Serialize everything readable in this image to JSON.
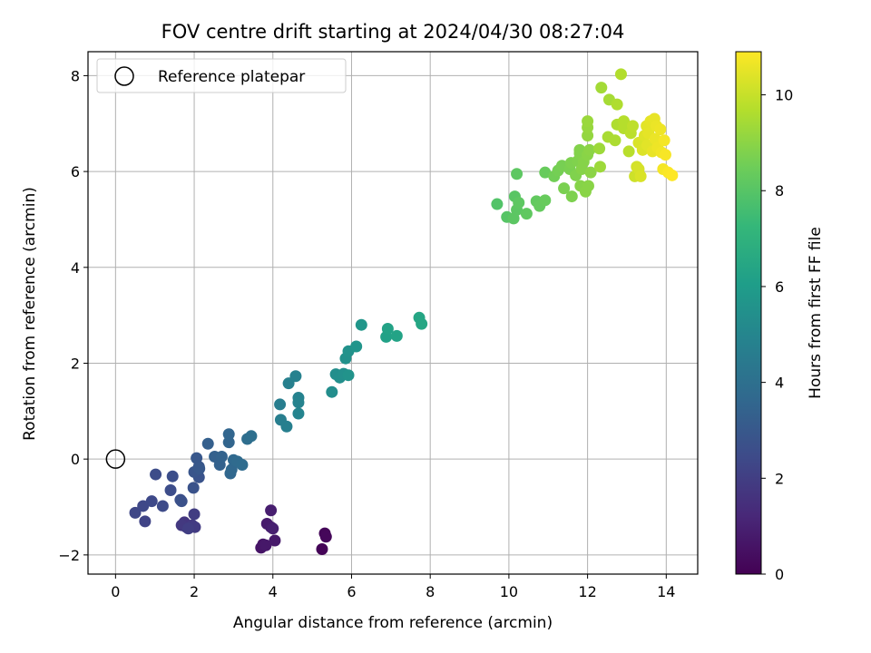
{
  "chart_data": {
    "type": "scatter",
    "title": "FOV centre drift starting at 2024/04/30 08:27:04",
    "xlabel": "Angular distance from reference (arcmin)",
    "ylabel": "Rotation from reference (arcmin)",
    "colorbar_label": "Hours from first FF file",
    "xlim": [
      -0.7,
      14.8
    ],
    "ylim": [
      -2.4,
      8.5
    ],
    "clim": [
      0,
      10.9
    ],
    "xticks": [
      0,
      2,
      4,
      6,
      8,
      10,
      12,
      14
    ],
    "yticks": [
      -2,
      0,
      2,
      4,
      6,
      8
    ],
    "cticks": [
      0,
      2,
      4,
      6,
      8,
      10
    ],
    "xtick_labels": [
      "0",
      "2",
      "4",
      "6",
      "8",
      "10",
      "12",
      "14"
    ],
    "ytick_labels": [
      "−2",
      "0",
      "2",
      "4",
      "6",
      "8"
    ],
    "ctick_labels": [
      "0",
      "2",
      "4",
      "6",
      "8",
      "10"
    ],
    "grid": true,
    "colormap": "viridis",
    "legend": {
      "location": "upper-left",
      "label": "Reference platepar",
      "x": 0,
      "y": 0
    },
    "points": [
      [
        5.25,
        -1.88,
        0.1
      ],
      [
        5.32,
        -1.55,
        0.15
      ],
      [
        5.35,
        -1.62,
        0.2
      ],
      [
        3.7,
        -1.85,
        0.6
      ],
      [
        3.75,
        -1.78,
        0.65
      ],
      [
        3.82,
        -1.8,
        0.7
      ],
      [
        4.05,
        -1.7,
        0.75
      ],
      [
        3.85,
        -1.35,
        0.8
      ],
      [
        3.95,
        -1.42,
        0.85
      ],
      [
        3.95,
        -1.07,
        0.9
      ],
      [
        4.0,
        -1.45,
        0.95
      ],
      [
        1.75,
        -1.32,
        1.7
      ],
      [
        1.8,
        -1.42,
        1.75
      ],
      [
        1.68,
        -1.38,
        1.8
      ],
      [
        1.95,
        -1.38,
        1.85
      ],
      [
        2.02,
        -1.42,
        1.9
      ],
      [
        2.0,
        -1.15,
        1.95
      ],
      [
        1.85,
        -1.45,
        2.0
      ],
      [
        0.75,
        -1.3,
        2.2
      ],
      [
        0.5,
        -1.12,
        2.3
      ],
      [
        0.7,
        -0.98,
        2.35
      ],
      [
        0.92,
        -0.88,
        2.4
      ],
      [
        1.2,
        -0.98,
        2.45
      ],
      [
        1.02,
        -0.32,
        2.5
      ],
      [
        1.4,
        -0.65,
        2.55
      ],
      [
        1.45,
        -0.36,
        2.6
      ],
      [
        1.65,
        -0.85,
        2.65
      ],
      [
        1.68,
        -0.88,
        2.7
      ],
      [
        1.98,
        -0.6,
        2.75
      ],
      [
        2.12,
        -0.38,
        2.8
      ],
      [
        2.0,
        -0.27,
        2.85
      ],
      [
        2.12,
        -0.16,
        2.9
      ],
      [
        2.06,
        0.02,
        2.95
      ],
      [
        2.13,
        -0.2,
        3.0
      ],
      [
        2.35,
        0.32,
        3.3
      ],
      [
        2.52,
        0.05,
        3.35
      ],
      [
        2.65,
        -0.12,
        3.4
      ],
      [
        2.7,
        0.05,
        3.45
      ],
      [
        2.88,
        0.35,
        3.5
      ],
      [
        2.88,
        0.52,
        3.55
      ],
      [
        2.92,
        -0.3,
        3.6
      ],
      [
        2.95,
        -0.22,
        3.65
      ],
      [
        3.0,
        -0.02,
        3.7
      ],
      [
        3.1,
        -0.05,
        3.75
      ],
      [
        3.22,
        -0.12,
        3.8
      ],
      [
        3.35,
        0.42,
        3.9
      ],
      [
        3.45,
        0.48,
        3.95
      ],
      [
        4.18,
        1.14,
        4.6
      ],
      [
        4.2,
        0.82,
        4.65
      ],
      [
        4.35,
        0.68,
        4.7
      ],
      [
        4.4,
        1.58,
        4.75
      ],
      [
        4.58,
        1.73,
        4.8
      ],
      [
        4.65,
        1.28,
        4.85
      ],
      [
        4.65,
        1.18,
        4.9
      ],
      [
        4.65,
        0.95,
        4.95
      ],
      [
        5.5,
        1.4,
        5.3
      ],
      [
        5.6,
        1.77,
        5.35
      ],
      [
        5.7,
        1.7,
        5.4
      ],
      [
        5.8,
        1.78,
        5.45
      ],
      [
        5.85,
        2.1,
        5.5
      ],
      [
        5.92,
        2.25,
        5.55
      ],
      [
        5.92,
        1.75,
        5.6
      ],
      [
        6.12,
        2.35,
        5.65
      ],
      [
        6.25,
        2.8,
        5.7
      ],
      [
        6.88,
        2.55,
        6.2
      ],
      [
        6.92,
        2.72,
        6.25
      ],
      [
        7.15,
        2.57,
        6.3
      ],
      [
        7.72,
        2.95,
        6.4
      ],
      [
        7.78,
        2.82,
        6.45
      ],
      [
        9.7,
        5.32,
        7.9
      ],
      [
        9.95,
        5.05,
        8.0
      ],
      [
        10.15,
        5.48,
        8.05
      ],
      [
        10.12,
        5.02,
        8.1
      ],
      [
        10.2,
        5.2,
        8.1
      ],
      [
        10.25,
        5.35,
        8.15
      ],
      [
        10.2,
        5.95,
        8.15
      ],
      [
        10.45,
        5.12,
        8.2
      ],
      [
        10.7,
        5.38,
        8.25
      ],
      [
        10.78,
        5.28,
        8.3
      ],
      [
        10.92,
        5.4,
        8.35
      ],
      [
        10.92,
        5.98,
        8.35
      ],
      [
        11.15,
        5.9,
        8.55
      ],
      [
        11.25,
        6.02,
        8.6
      ],
      [
        11.35,
        6.12,
        8.65
      ],
      [
        11.4,
        5.65,
        8.7
      ],
      [
        11.55,
        6.05,
        8.7
      ],
      [
        11.58,
        6.18,
        8.75
      ],
      [
        11.6,
        5.48,
        8.75
      ],
      [
        11.7,
        5.92,
        8.8
      ],
      [
        11.75,
        6.22,
        8.8
      ],
      [
        11.8,
        6.38,
        8.85
      ],
      [
        11.8,
        6.45,
        8.85
      ],
      [
        11.85,
        6.05,
        8.9
      ],
      [
        11.82,
        5.7,
        8.9
      ],
      [
        11.9,
        6.2,
        8.9
      ],
      [
        11.95,
        5.58,
        8.95
      ],
      [
        12.0,
        6.35,
        8.95
      ],
      [
        12.02,
        5.7,
        8.95
      ],
      [
        12.05,
        6.45,
        9.0
      ],
      [
        12.08,
        5.98,
        9.0
      ],
      [
        12.0,
        6.75,
        9.15
      ],
      [
        12.0,
        6.92,
        9.2
      ],
      [
        12.0,
        7.05,
        9.25
      ],
      [
        12.3,
        6.48,
        9.3
      ],
      [
        12.32,
        6.1,
        9.3
      ],
      [
        12.35,
        7.75,
        9.4
      ],
      [
        12.55,
        7.5,
        9.45
      ],
      [
        12.52,
        6.72,
        9.5
      ],
      [
        12.7,
        6.65,
        9.55
      ],
      [
        12.75,
        7.4,
        9.6
      ],
      [
        12.75,
        6.98,
        9.6
      ],
      [
        12.85,
        8.03,
        9.65
      ],
      [
        12.92,
        7.05,
        9.7
      ],
      [
        12.92,
        6.9,
        9.7
      ],
      [
        13.05,
        6.42,
        9.75
      ],
      [
        13.1,
        6.8,
        9.8
      ],
      [
        13.15,
        6.95,
        9.85
      ],
      [
        13.2,
        5.9,
        10.1
      ],
      [
        13.25,
        6.1,
        10.2
      ],
      [
        13.3,
        6.05,
        10.25
      ],
      [
        13.35,
        5.9,
        10.3
      ],
      [
        13.3,
        6.6,
        10.3
      ],
      [
        13.4,
        6.45,
        10.35
      ],
      [
        13.45,
        6.75,
        10.4
      ],
      [
        13.5,
        6.95,
        10.45
      ],
      [
        13.52,
        6.55,
        10.45
      ],
      [
        13.55,
        6.8,
        10.5
      ],
      [
        13.6,
        7.05,
        10.5
      ],
      [
        13.65,
        6.42,
        10.55
      ],
      [
        13.7,
        7.1,
        10.55
      ],
      [
        13.72,
        6.68,
        10.6
      ],
      [
        13.75,
        6.95,
        10.6
      ],
      [
        13.78,
        6.5,
        10.65
      ],
      [
        13.85,
        6.88,
        10.65
      ],
      [
        13.88,
        6.4,
        10.7
      ],
      [
        13.92,
        6.05,
        10.75
      ],
      [
        13.95,
        6.65,
        10.75
      ],
      [
        13.98,
        6.35,
        10.8
      ],
      [
        14.05,
        5.98,
        10.85
      ],
      [
        14.15,
        5.92,
        10.9
      ]
    ]
  }
}
